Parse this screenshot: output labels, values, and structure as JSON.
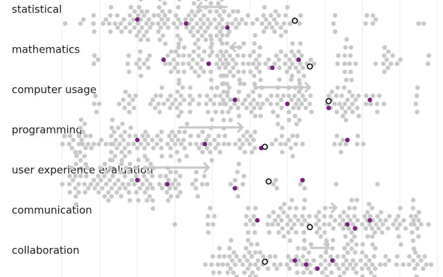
{
  "chart_data": {
    "type": "beeswarm",
    "title": "",
    "xlabel": "",
    "ylabel": "",
    "xlim": [
      0,
      100
    ],
    "grid": "vertical",
    "colors": {
      "dot": "#c8c8c8",
      "highlight": "#7b1f7e",
      "marker_stroke": "#1a1a1a",
      "arrow": "#c8c8c8"
    },
    "rows": [
      {
        "label": "statistical",
        "arrow": {
          "from": 44,
          "to": 36
        },
        "marker": 62,
        "highlights": [
          20,
          33,
          44
        ],
        "clusters": [
          {
            "center": 4,
            "count": 2,
            "spread": 2
          },
          {
            "center": 9,
            "count": 6,
            "spread": 3
          },
          {
            "center": 22,
            "count": 58,
            "spread": 8
          },
          {
            "center": 40,
            "count": 70,
            "spread": 10
          },
          {
            "center": 58,
            "count": 24,
            "spread": 5
          },
          {
            "center": 72,
            "count": 3,
            "spread": 1
          },
          {
            "center": 82,
            "count": 5,
            "spread": 2
          },
          {
            "center": 96,
            "count": 2,
            "spread": 1
          }
        ]
      },
      {
        "label": "mathematics",
        "arrow": {
          "from": 48,
          "to": 45
        },
        "marker": 66,
        "highlights": [
          27,
          39,
          56,
          63
        ],
        "clusters": [
          {
            "center": 9,
            "count": 3,
            "spread": 1
          },
          {
            "center": 20,
            "count": 12,
            "spread": 3
          },
          {
            "center": 30,
            "count": 20,
            "spread": 4
          },
          {
            "center": 46,
            "count": 80,
            "spread": 11
          },
          {
            "center": 63,
            "count": 24,
            "spread": 4
          },
          {
            "center": 76,
            "count": 14,
            "spread": 3
          },
          {
            "center": 87,
            "count": 12,
            "spread": 3
          },
          {
            "center": 97,
            "count": 2,
            "spread": 1
          }
        ]
      },
      {
        "label": "computer usage",
        "arrow": {
          "from": 51,
          "to": 66
        },
        "marker": 71,
        "highlights": [
          46,
          60,
          71,
          82
        ],
        "clusters": [
          {
            "center": 9,
            "count": 4,
            "spread": 1
          },
          {
            "center": 17,
            "count": 10,
            "spread": 2
          },
          {
            "center": 30,
            "count": 30,
            "spread": 6
          },
          {
            "center": 44,
            "count": 44,
            "spread": 8
          },
          {
            "center": 61,
            "count": 44,
            "spread": 8
          },
          {
            "center": 75,
            "count": 28,
            "spread": 5
          },
          {
            "center": 84,
            "count": 6,
            "spread": 2
          },
          {
            "center": 94,
            "count": 4,
            "spread": 2
          }
        ]
      },
      {
        "label": "programming",
        "arrow": {
          "from": 31,
          "to": 48
        },
        "marker": 54,
        "highlights": [
          20,
          38,
          53,
          76
        ],
        "clusters": [
          {
            "center": 5,
            "count": 28,
            "spread": 4
          },
          {
            "center": 16,
            "count": 40,
            "spread": 6
          },
          {
            "center": 28,
            "count": 30,
            "spread": 6
          },
          {
            "center": 40,
            "count": 22,
            "spread": 5
          },
          {
            "center": 49,
            "count": 14,
            "spread": 3
          },
          {
            "center": 60,
            "count": 14,
            "spread": 3
          },
          {
            "center": 74,
            "count": 6,
            "spread": 2
          },
          {
            "center": 80,
            "count": 3,
            "spread": 1
          }
        ]
      },
      {
        "label": "user experience evaluation",
        "arrow": {
          "from": 22,
          "to": 39
        },
        "marker": 55,
        "highlights": [
          20,
          28,
          46,
          64
        ],
        "clusters": [
          {
            "center": 4,
            "count": 20,
            "spread": 4
          },
          {
            "center": 14,
            "count": 44,
            "spread": 6
          },
          {
            "center": 26,
            "count": 40,
            "spread": 6
          },
          {
            "center": 36,
            "count": 8,
            "spread": 2
          },
          {
            "center": 47,
            "count": 8,
            "spread": 2
          },
          {
            "center": 57,
            "count": 3,
            "spread": 1
          },
          {
            "center": 64,
            "count": 3,
            "spread": 1
          },
          {
            "center": 73,
            "count": 1,
            "spread": 0
          },
          {
            "center": 84,
            "count": 1,
            "spread": 0
          }
        ]
      },
      {
        "label": "communication",
        "arrow": {
          "from": 71,
          "to": 73
        },
        "marker": 66,
        "highlights": [
          52,
          76,
          78,
          82
        ],
        "clusters": [
          {
            "center": 30,
            "count": 1,
            "spread": 0
          },
          {
            "center": 40,
            "count": 6,
            "spread": 2
          },
          {
            "center": 50,
            "count": 8,
            "spread": 2
          },
          {
            "center": 62,
            "count": 48,
            "spread": 9
          },
          {
            "center": 78,
            "count": 56,
            "spread": 9
          },
          {
            "center": 92,
            "count": 26,
            "spread": 5
          }
        ]
      },
      {
        "label": "collaboration",
        "arrow": {
          "from": 66,
          "to": 71
        },
        "marker": 54,
        "highlights": [
          62,
          65,
          68,
          72
        ],
        "clusters": [
          {
            "center": 42,
            "count": 20,
            "spread": 4
          },
          {
            "center": 52,
            "count": 32,
            "spread": 6
          },
          {
            "center": 66,
            "count": 50,
            "spread": 9
          },
          {
            "center": 80,
            "count": 34,
            "spread": 7
          },
          {
            "center": 93,
            "count": 16,
            "spread": 4
          }
        ]
      }
    ]
  }
}
